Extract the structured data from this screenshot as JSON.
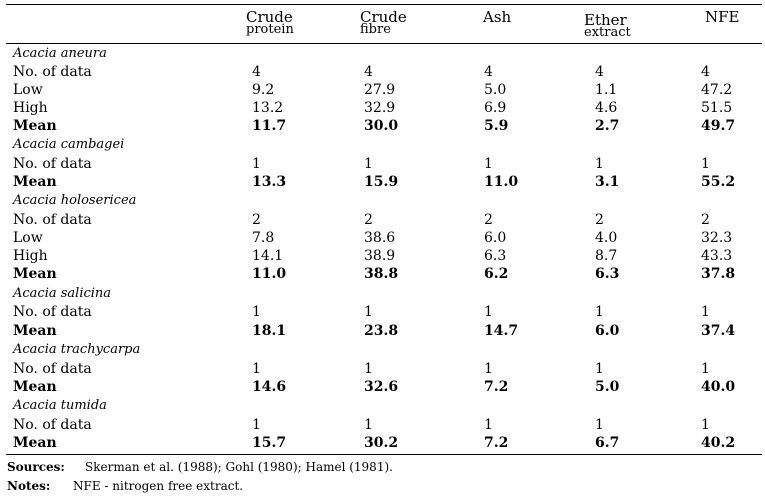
{
  "headers": [
    {
      "line1": "Crude",
      "line2": "protein"
    },
    {
      "line1": "Crude",
      "line2": "fibre"
    },
    {
      "line1": "Ash",
      "line2": ""
    },
    {
      "line1": "Ether",
      "line2": "extract"
    },
    {
      "line1": "NFE",
      "line2": ""
    }
  ],
  "groups": [
    {
      "species": "Acacia aneura",
      "rows": [
        {
          "label": "No. of data",
          "values": [
            "4",
            "4",
            "4",
            "4",
            "4"
          ],
          "bold": false
        },
        {
          "label": "Low",
          "values": [
            "9.2",
            "27.9",
            "5.0",
            "1.1",
            "47.2"
          ],
          "bold": false
        },
        {
          "label": "High",
          "values": [
            "13.2",
            "32.9",
            "6.9",
            "4.6",
            "51.5"
          ],
          "bold": false
        },
        {
          "label": "Mean",
          "values": [
            "11.7",
            "30.0",
            "5.9",
            "2.7",
            "49.7"
          ],
          "bold": true
        }
      ]
    },
    {
      "species": "Acacia cambagei",
      "rows": [
        {
          "label": "No. of data",
          "values": [
            "1",
            "1",
            "1",
            "1",
            "1"
          ],
          "bold": false
        },
        {
          "label": "Mean",
          "values": [
            "13.3",
            "15.9",
            "11.0",
            "3.1",
            "55.2"
          ],
          "bold": true
        }
      ]
    },
    {
      "species": "Acacia holosericea",
      "rows": [
        {
          "label": "No. of data",
          "values": [
            "2",
            "2",
            "2",
            "2",
            "2"
          ],
          "bold": false
        },
        {
          "label": "Low",
          "values": [
            "7.8",
            "38.6",
            "6.0",
            "4.0",
            "32.3"
          ],
          "bold": false
        },
        {
          "label": "High",
          "values": [
            "14.1",
            "38.9",
            "6.3",
            "8.7",
            "43.3"
          ],
          "bold": false
        },
        {
          "label": "Mean",
          "values": [
            "11.0",
            "38.8",
            "6.2",
            "6.3",
            "37.8"
          ],
          "bold": true
        }
      ]
    },
    {
      "species": "Acacia salicina",
      "rows": [
        {
          "label": "No. of data",
          "values": [
            "1",
            "1",
            "1",
            "1",
            "1"
          ],
          "bold": false
        },
        {
          "label": "Mean",
          "values": [
            "18.1",
            "23.8",
            "14.7",
            "6.0",
            "37.4"
          ],
          "bold": true
        }
      ]
    },
    {
      "species": "Acacia trachycarpa",
      "rows": [
        {
          "label": "No. of data",
          "values": [
            "1",
            "1",
            "1",
            "1",
            "1"
          ],
          "bold": false
        },
        {
          "label": "Mean",
          "values": [
            "14.6",
            "32.6",
            "7.2",
            "5.0",
            "40.0"
          ],
          "bold": true
        }
      ]
    },
    {
      "species": "Acacia tumida",
      "rows": [
        {
          "label": "No. of data",
          "values": [
            "1",
            "1",
            "1",
            "1",
            "1"
          ],
          "bold": false
        },
        {
          "label": "Mean",
          "values": [
            "15.7",
            "30.2",
            "7.2",
            "6.7",
            "40.2"
          ],
          "bold": true
        }
      ]
    }
  ],
  "footer": {
    "sources_label": "Sources:",
    "sources_text": "Skerman et al. (1988);  Gohl (1980);  Hamel (1981).",
    "notes_label": "Notes:",
    "notes_text": "NFE - nitrogen free extract."
  }
}
